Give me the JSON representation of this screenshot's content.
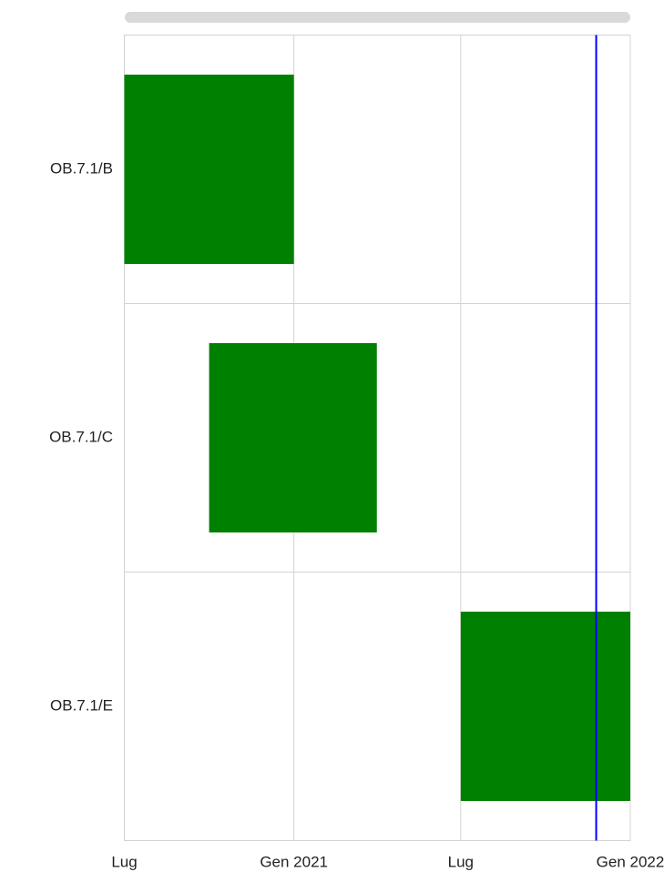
{
  "chart_data": {
    "type": "timeline",
    "categories": [
      "OB.7.1/B",
      "OB.7.1/C",
      "OB.7.1/E"
    ],
    "start": [
      "2020-07",
      "2020-10",
      "2021-07"
    ],
    "end": [
      "2021-01",
      "2021-04",
      "2022-01"
    ],
    "color": "#008000",
    "xlim": [
      "2020-07",
      "2022-01"
    ],
    "xticks": [
      {
        "value": "2020-07",
        "label": "Lug"
      },
      {
        "value": "2021-01",
        "label": "Gen 2021"
      },
      {
        "value": "2021-07",
        "label": "Lug"
      },
      {
        "value": "2022-01",
        "label": "Gen 2022"
      }
    ],
    "grid": true,
    "marker": {
      "x": "2021-11-25",
      "color": "#0000ff"
    }
  }
}
